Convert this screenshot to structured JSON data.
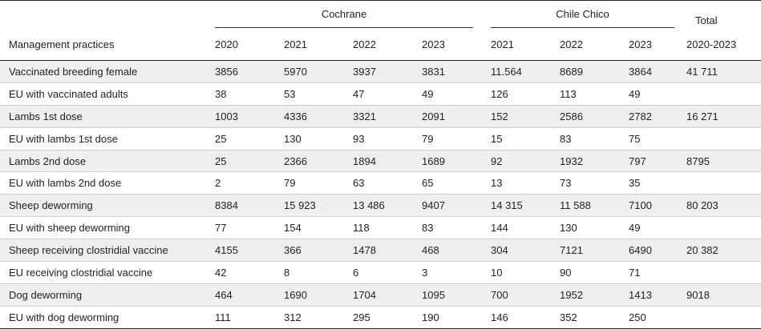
{
  "header": {
    "row_label": "Management practices",
    "group_cochrane": "Cochrane",
    "group_chile_chico": "Chile Chico",
    "total_line1": "Total",
    "total_line2": "2020-2023",
    "years_cochrane": [
      "2020",
      "2021",
      "2022",
      "2023"
    ],
    "years_chile_chico": [
      "2021",
      "2022",
      "2023"
    ]
  },
  "rows": [
    {
      "label": "Vaccinated breeding female",
      "values": [
        "3856",
        "5970",
        "3937",
        "3831",
        "11.564",
        "8689",
        "3864",
        "41 711"
      ]
    },
    {
      "label": "EU with vaccinated adults",
      "values": [
        "38",
        "53",
        "47",
        "49",
        "126",
        "113",
        "49",
        ""
      ]
    },
    {
      "label": "Lambs 1st dose",
      "values": [
        "1003",
        "4336",
        "3321",
        "2091",
        "152",
        "2586",
        "2782",
        "16 271"
      ]
    },
    {
      "label": "EU with lambs 1st dose",
      "values": [
        "25",
        "130",
        "93",
        "79",
        "15",
        "83",
        "75",
        ""
      ]
    },
    {
      "label": "Lambs 2nd dose",
      "values": [
        "25",
        "2366",
        "1894",
        "1689",
        "92",
        "1932",
        "797",
        "8795"
      ]
    },
    {
      "label": "EU with lambs 2nd dose",
      "values": [
        "2",
        "79",
        "63",
        "65",
        "13",
        "73",
        "35",
        ""
      ]
    },
    {
      "label": "Sheep deworming",
      "values": [
        "8384",
        "15 923",
        "13 486",
        "9407",
        "14 315",
        "11 588",
        "7100",
        "80 203"
      ]
    },
    {
      "label": "EU with sheep deworming",
      "values": [
        "77",
        "154",
        "118",
        "83",
        "144",
        "130",
        "49",
        ""
      ]
    },
    {
      "label": "Sheep receiving clostridial vaccine",
      "values": [
        "4155",
        "366",
        "1478",
        "468",
        "304",
        "7121",
        "6490",
        "20 382"
      ]
    },
    {
      "label": "EU receiving clostridial vaccine",
      "values": [
        "42",
        "8",
        "6",
        "3",
        "10",
        "90",
        "71",
        ""
      ]
    },
    {
      "label": "Dog deworming",
      "values": [
        "464",
        "1690",
        "1704",
        "1095",
        "700",
        "1952",
        "1413",
        "9018"
      ]
    },
    {
      "label": "EU with dog deworming",
      "values": [
        "111",
        "312",
        "295",
        "190",
        "146",
        "352",
        "250",
        ""
      ]
    }
  ]
}
